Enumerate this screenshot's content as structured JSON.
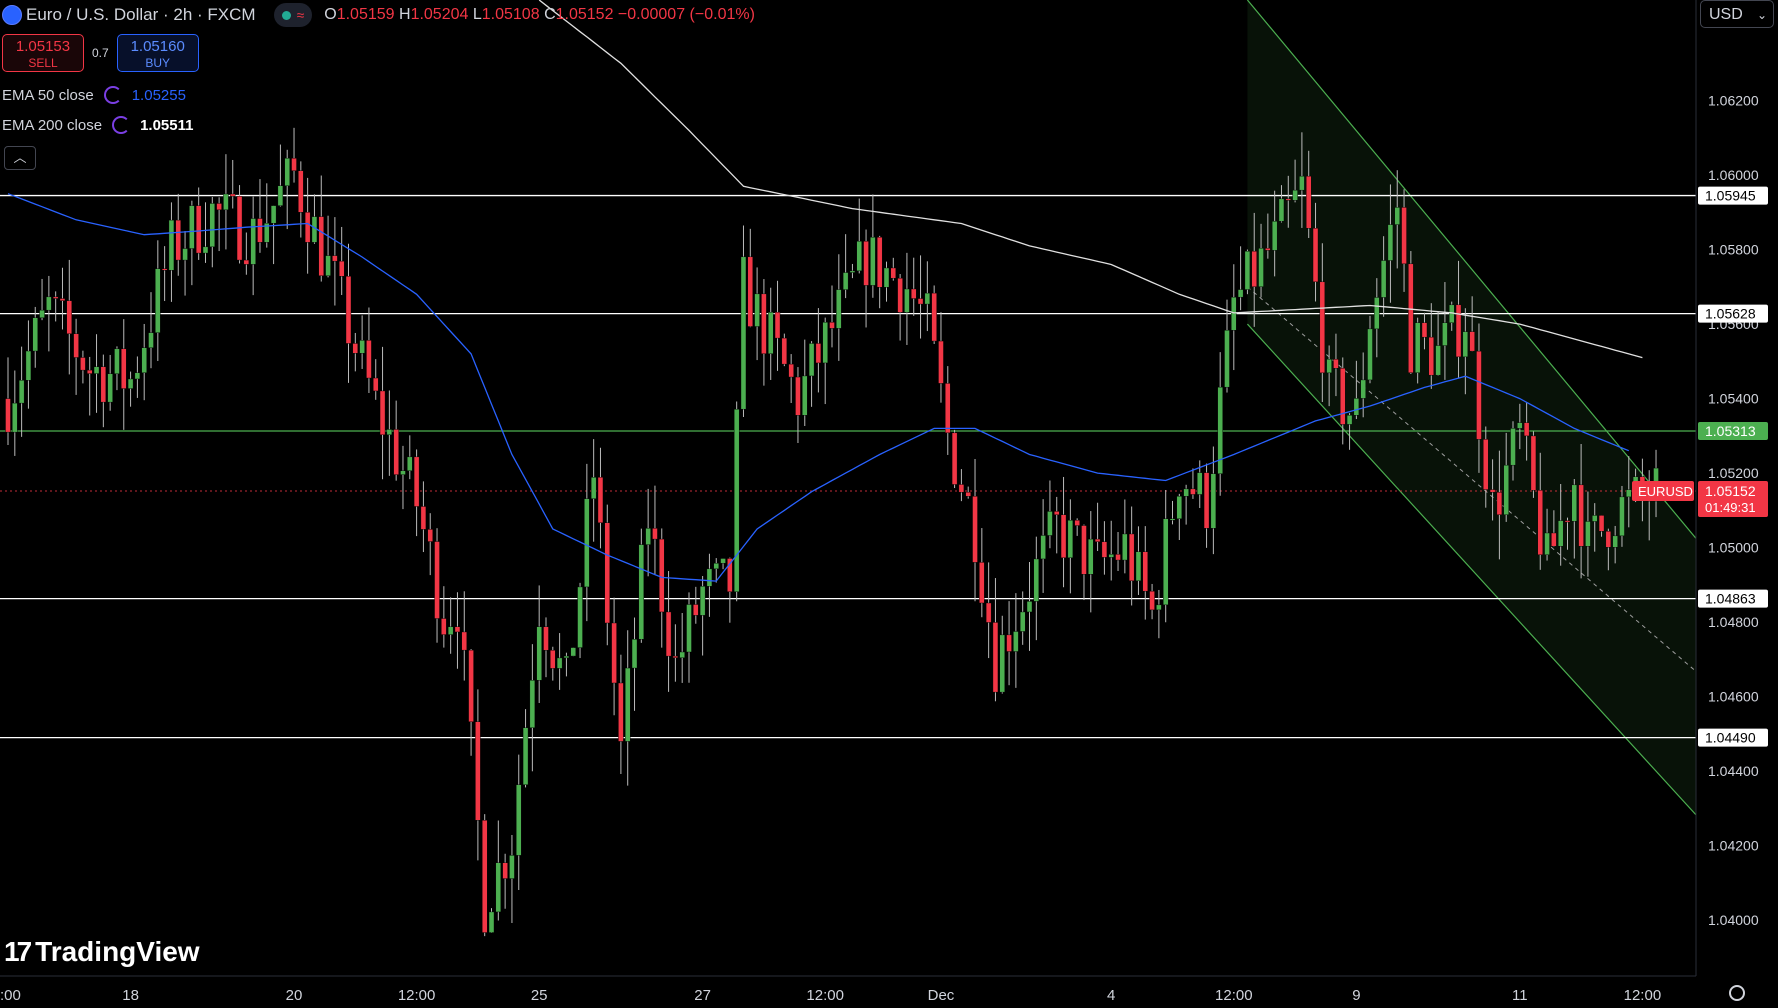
{
  "header": {
    "symbol": "Euro / U.S. Dollar · 2h · FXCM",
    "open_label": "O",
    "open": "1.05159",
    "high_label": "H",
    "high": "1.05204",
    "low_label": "L",
    "low": "1.05108",
    "close_label": "C",
    "close": "1.05152",
    "change": "−0.00007 (−0.01%)"
  },
  "trade": {
    "sell_price": "1.05153",
    "sell_label": "SELL",
    "spread": "0.7",
    "buy_price": "1.05160",
    "buy_label": "BUY"
  },
  "indicators": [
    {
      "label": "EMA 50 close",
      "value": "1.05255",
      "color": "#2962ff"
    },
    {
      "label": "EMA 200 close",
      "value": "1.05511",
      "color": "#ffffff"
    }
  ],
  "collapse_icon": "chevron-up-icon",
  "currency_selector": "USD",
  "brand": "TradingView",
  "colors": {
    "up": "#4caf50",
    "down": "#f23645",
    "ema50": "#2962ff",
    "ema200": "#e0e0e0",
    "channel": "#4caf50",
    "sell": "#f23645",
    "buy": "#2962ff"
  },
  "chart_data": {
    "type": "candlestick",
    "symbol": "EURUSD",
    "timeframe": "2h",
    "ylim": [
      1.0385,
      1.0647
    ],
    "y_ticks": [
      "1.06200",
      "1.06000",
      "1.05800",
      "1.05600",
      "1.05400",
      "1.05200",
      "1.05000",
      "1.04800",
      "1.04600",
      "1.04400",
      "1.04200",
      "1.04000"
    ],
    "x_ticks": [
      {
        "label": ":00",
        "bar": 0
      },
      {
        "label": "18",
        "bar": 18
      },
      {
        "label": "20",
        "bar": 42
      },
      {
        "label": "12:00",
        "bar": 60
      },
      {
        "label": "25",
        "bar": 78
      },
      {
        "label": "27",
        "bar": 102
      },
      {
        "label": "12:00",
        "bar": 120
      },
      {
        "label": "Dec",
        "bar": 137
      },
      {
        "label": "4",
        "bar": 162
      },
      {
        "label": "12:00",
        "bar": 180
      },
      {
        "label": "9",
        "bar": 198
      },
      {
        "label": "11",
        "bar": 222
      },
      {
        "label": "12:00",
        "bar": 240
      }
    ],
    "horizontal_levels": [
      {
        "value": 1.05945,
        "label": "1.05945",
        "color": "#ffffff"
      },
      {
        "value": 1.05628,
        "label": "1.05628",
        "color": "#ffffff"
      },
      {
        "value": 1.05313,
        "label": "1.05313",
        "color": "#4caf50"
      },
      {
        "value": 1.04863,
        "label": "1.04863",
        "color": "#ffffff"
      },
      {
        "value": 1.0449,
        "label": "1.04490",
        "color": "#ffffff"
      }
    ],
    "last_price": {
      "label": "EURUSD",
      "value": "1.05152",
      "countdown": "01:49:31"
    },
    "regression_channel": {
      "start_bar": 182,
      "end_bar": 249,
      "upper": [
        1.0647,
        1.05
      ],
      "middle": [
        1.057,
        1.0465
      ],
      "lower": [
        1.056,
        1.0426
      ]
    },
    "series": [
      {
        "name": "EMA 50 close",
        "control": [
          [
            0,
            1.0595
          ],
          [
            10,
            1.0588
          ],
          [
            20,
            1.0584
          ],
          [
            28,
            1.0585
          ],
          [
            35,
            1.0586
          ],
          [
            44,
            1.0587
          ],
          [
            52,
            1.0578
          ],
          [
            60,
            1.0568
          ],
          [
            68,
            1.0552
          ],
          [
            74,
            1.0525
          ],
          [
            80,
            1.0505
          ],
          [
            88,
            1.0498
          ],
          [
            96,
            1.0492
          ],
          [
            104,
            1.0491
          ],
          [
            110,
            1.0505
          ],
          [
            118,
            1.0515
          ],
          [
            128,
            1.0525
          ],
          [
            136,
            1.0532
          ],
          [
            142,
            1.0532
          ],
          [
            150,
            1.0525
          ],
          [
            160,
            1.052
          ],
          [
            170,
            1.0518
          ],
          [
            180,
            1.0525
          ],
          [
            192,
            1.0534
          ],
          [
            200,
            1.0538
          ],
          [
            208,
            1.0543
          ],
          [
            214,
            1.0546
          ],
          [
            222,
            1.054
          ],
          [
            230,
            1.0532
          ],
          [
            238,
            1.0526
          ]
        ]
      },
      {
        "name": "EMA 200 close",
        "control": [
          [
            78,
            1.0647
          ],
          [
            90,
            1.063
          ],
          [
            100,
            1.0612
          ],
          [
            108,
            1.0597
          ],
          [
            116,
            1.0594
          ],
          [
            124,
            1.0591
          ],
          [
            132,
            1.0589
          ],
          [
            140,
            1.0587
          ],
          [
            150,
            1.0581
          ],
          [
            162,
            1.0576
          ],
          [
            172,
            1.0568
          ],
          [
            180,
            1.0563
          ],
          [
            190,
            1.0564
          ],
          [
            200,
            1.0565
          ],
          [
            212,
            1.0563
          ],
          [
            222,
            1.056
          ],
          [
            232,
            1.0555
          ],
          [
            240,
            1.0551
          ]
        ]
      }
    ],
    "candles": {
      "waypoints": [
        [
          0,
          1.054
        ],
        [
          6,
          1.0564
        ],
        [
          12,
          1.0548
        ],
        [
          18,
          1.0545
        ],
        [
          24,
          1.058
        ],
        [
          30,
          1.059
        ],
        [
          36,
          1.0584
        ],
        [
          42,
          1.06
        ],
        [
          48,
          1.057
        ],
        [
          54,
          1.0538
        ],
        [
          60,
          1.0512
        ],
        [
          64,
          1.0482
        ],
        [
          66,
          1.0485
        ],
        [
          70,
          1.0405
        ],
        [
          74,
          1.0422
        ],
        [
          78,
          1.0485
        ],
        [
          82,
          1.0462
        ],
        [
          86,
          1.052
        ],
        [
          90,
          1.0445
        ],
        [
          94,
          1.0508
        ],
        [
          98,
          1.0468
        ],
        [
          102,
          1.0488
        ],
        [
          106,
          1.049
        ],
        [
          108,
          1.057
        ],
        [
          112,
          1.0555
        ],
        [
          116,
          1.054
        ],
        [
          120,
          1.0555
        ],
        [
          126,
          1.0578
        ],
        [
          132,
          1.057
        ],
        [
          135,
          1.056
        ],
        [
          138,
          1.053
        ],
        [
          142,
          1.0505
        ],
        [
          145,
          1.047
        ],
        [
          150,
          1.049
        ],
        [
          154,
          1.0505
        ],
        [
          160,
          1.0495
        ],
        [
          164,
          1.05
        ],
        [
          168,
          1.0482
        ],
        [
          172,
          1.052
        ],
        [
          176,
          1.0512
        ],
        [
          180,
          1.0565
        ],
        [
          186,
          1.0582
        ],
        [
          190,
          1.0596
        ],
        [
          194,
          1.0542
        ],
        [
          198,
          1.0535
        ],
        [
          200,
          1.0562
        ],
        [
          204,
          1.0592
        ],
        [
          206,
          1.0555
        ],
        [
          210,
          1.0552
        ],
        [
          214,
          1.0562
        ],
        [
          218,
          1.051
        ],
        [
          222,
          1.053
        ],
        [
          226,
          1.0495
        ],
        [
          230,
          1.0518
        ],
        [
          232,
          1.05
        ],
        [
          236,
          1.051
        ],
        [
          242,
          1.0515
        ]
      ],
      "count": 243
    }
  }
}
